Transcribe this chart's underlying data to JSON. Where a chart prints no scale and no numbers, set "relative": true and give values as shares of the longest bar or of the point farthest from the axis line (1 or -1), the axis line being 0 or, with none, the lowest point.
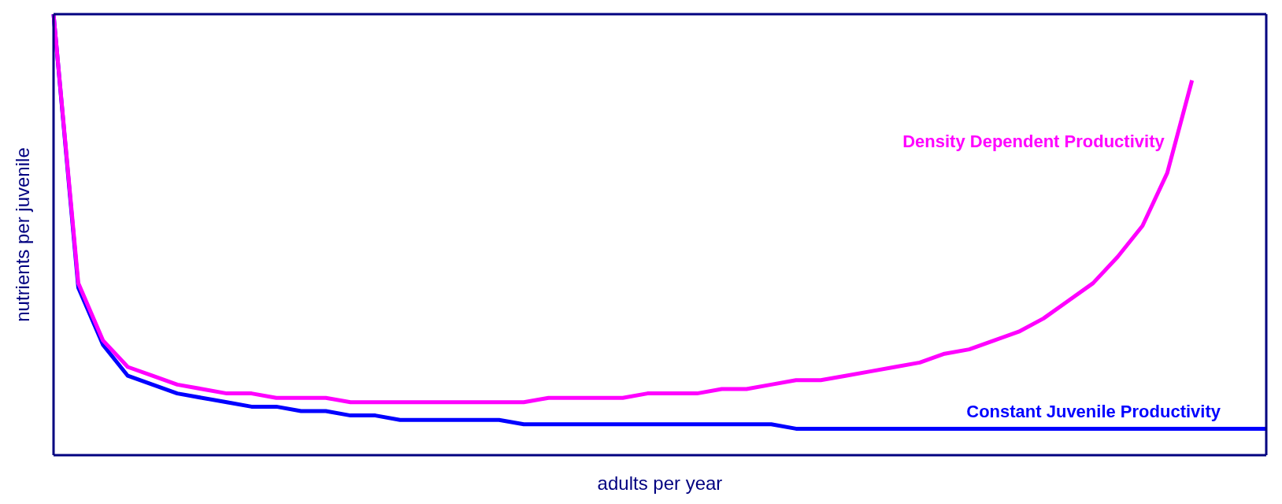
{
  "chart_data": {
    "type": "line",
    "relative": true,
    "xlabel": "adults per year",
    "ylabel": "nutrients per juvenile",
    "categories": [
      null,
      null,
      null,
      null,
      null,
      null,
      null,
      null,
      null,
      null,
      null,
      null,
      null,
      null,
      null,
      null,
      null,
      null,
      null,
      null,
      null,
      null,
      null,
      null,
      null,
      null,
      null,
      null,
      null,
      null,
      null,
      null,
      null,
      null,
      null,
      null,
      null,
      null,
      null,
      null,
      null,
      null,
      null,
      null,
      null,
      null,
      null,
      null,
      null,
      null
    ],
    "series": [
      {
        "name": "Constant Juvenile Productivity",
        "color": "#0000ff",
        "values": [
          1.0,
          0.38,
          0.25,
          0.18,
          0.16,
          0.14,
          0.13,
          0.12,
          0.11,
          0.11,
          0.1,
          0.1,
          0.09,
          0.09,
          0.08,
          0.08,
          0.08,
          0.08,
          0.08,
          0.07,
          0.07,
          0.07,
          0.07,
          0.07,
          0.07,
          0.07,
          0.07,
          0.07,
          0.07,
          0.07,
          0.06,
          0.06,
          0.06,
          0.06,
          0.06,
          0.06,
          0.06,
          0.06,
          0.06,
          0.06,
          0.06,
          0.06,
          0.06,
          0.06,
          0.06,
          0.06,
          0.06,
          0.06,
          0.06,
          0.06
        ]
      },
      {
        "name": "Density Dependent Productivity",
        "color": "#ff00ff",
        "values": [
          1.0,
          0.39,
          0.26,
          0.2,
          0.18,
          0.16,
          0.15,
          0.14,
          0.14,
          0.13,
          0.13,
          0.13,
          0.12,
          0.12,
          0.12,
          0.12,
          0.12,
          0.12,
          0.12,
          0.12,
          0.13,
          0.13,
          0.13,
          0.13,
          0.14,
          0.14,
          0.14,
          0.15,
          0.15,
          0.16,
          0.17,
          0.17,
          0.18,
          0.19,
          0.2,
          0.21,
          0.23,
          0.24,
          0.26,
          0.28,
          0.31,
          0.35,
          0.39,
          0.45,
          0.52,
          0.64,
          0.85,
          null,
          null,
          null
        ]
      }
    ]
  }
}
